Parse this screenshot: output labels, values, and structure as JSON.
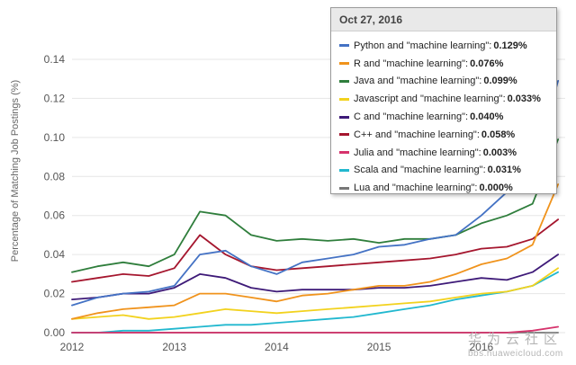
{
  "chart_data": {
    "type": "line",
    "title": "",
    "ylabel": "Percentage of Matching Job Postings (%)",
    "xlabel": "",
    "x_tick_labels": [
      "2012",
      "2013",
      "2014",
      "2015",
      "2016"
    ],
    "y_ticks": [
      "0.00",
      "0.02",
      "0.04",
      "0.06",
      "0.08",
      "0.10",
      "0.12",
      "0.14"
    ],
    "ylim": [
      0,
      0.14
    ],
    "xlim": [
      "2012-01",
      "2016-10"
    ],
    "grid": true,
    "x": [
      "2012-01",
      "2012-04",
      "2012-07",
      "2012-10",
      "2013-01",
      "2013-04",
      "2013-07",
      "2013-10",
      "2014-01",
      "2014-04",
      "2014-07",
      "2014-10",
      "2015-01",
      "2015-04",
      "2015-07",
      "2015-10",
      "2016-01",
      "2016-04",
      "2016-07",
      "2016-10"
    ],
    "series": [
      {
        "name": "Python",
        "color": "#4472c4",
        "values": [
          0.014,
          0.018,
          0.02,
          0.021,
          0.024,
          0.04,
          0.042,
          0.034,
          0.03,
          0.036,
          0.038,
          0.04,
          0.044,
          0.045,
          0.048,
          0.05,
          0.06,
          0.072,
          0.082,
          0.129
        ]
      },
      {
        "name": "R",
        "color": "#f0931c",
        "values": [
          0.007,
          0.01,
          0.012,
          0.013,
          0.014,
          0.02,
          0.02,
          0.018,
          0.016,
          0.019,
          0.02,
          0.022,
          0.024,
          0.024,
          0.026,
          0.03,
          0.035,
          0.038,
          0.045,
          0.076
        ]
      },
      {
        "name": "Java",
        "color": "#2f7e3c",
        "values": [
          0.031,
          0.034,
          0.036,
          0.034,
          0.04,
          0.062,
          0.06,
          0.05,
          0.047,
          0.048,
          0.047,
          0.048,
          0.046,
          0.048,
          0.048,
          0.05,
          0.056,
          0.06,
          0.066,
          0.099
        ]
      },
      {
        "name": "Javascript",
        "color": "#f2d21e",
        "values": [
          0.007,
          0.008,
          0.009,
          0.007,
          0.008,
          0.01,
          0.012,
          0.011,
          0.01,
          0.011,
          0.012,
          0.013,
          0.014,
          0.015,
          0.016,
          0.018,
          0.02,
          0.021,
          0.024,
          0.033
        ]
      },
      {
        "name": "C",
        "color": "#3e1a78",
        "values": [
          0.017,
          0.018,
          0.02,
          0.02,
          0.023,
          0.03,
          0.028,
          0.023,
          0.021,
          0.022,
          0.022,
          0.022,
          0.023,
          0.023,
          0.024,
          0.026,
          0.028,
          0.027,
          0.031,
          0.04
        ]
      },
      {
        "name": "C++",
        "color": "#a5162e",
        "values": [
          0.026,
          0.028,
          0.03,
          0.029,
          0.033,
          0.05,
          0.04,
          0.034,
          0.032,
          0.033,
          0.034,
          0.035,
          0.036,
          0.037,
          0.038,
          0.04,
          0.043,
          0.044,
          0.048,
          0.058
        ]
      },
      {
        "name": "Julia",
        "color": "#d6336c",
        "values": [
          0.0,
          0.0,
          0.0,
          0.0,
          0.0,
          0.0,
          0.0,
          0.0,
          0.0,
          0.0,
          0.0,
          0.0,
          0.0,
          0.0,
          0.0,
          0.0,
          0.0,
          0.0,
          0.001,
          0.003
        ]
      },
      {
        "name": "Scala",
        "color": "#22b8cf",
        "values": [
          0.0,
          0.0,
          0.001,
          0.001,
          0.002,
          0.003,
          0.004,
          0.004,
          0.005,
          0.006,
          0.007,
          0.008,
          0.01,
          0.012,
          0.014,
          0.017,
          0.019,
          0.021,
          0.024,
          0.031
        ]
      },
      {
        "name": "Lua",
        "color": "#777777",
        "values": [
          0.0,
          0.0,
          0.0,
          0.0,
          0.0,
          0.0,
          0.0,
          0.0,
          0.0,
          0.0,
          0.0,
          0.0,
          0.0,
          0.0,
          0.0,
          0.0,
          0.0,
          0.0,
          0.0,
          0.0
        ]
      }
    ]
  },
  "tooltip": {
    "date": "Oct 27, 2016",
    "rows": [
      {
        "label": "Python and \"machine learning\":",
        "value": "0.129%",
        "color": "#4472c4"
      },
      {
        "label": "R and \"machine learning\":",
        "value": "0.076%",
        "color": "#f0931c"
      },
      {
        "label": "Java and \"machine learning\":",
        "value": "0.099%",
        "color": "#2f7e3c"
      },
      {
        "label": "Javascript and \"machine learning\":",
        "value": "0.033%",
        "color": "#f2d21e"
      },
      {
        "label": "C and \"machine learning\":",
        "value": "0.040%",
        "color": "#3e1a78"
      },
      {
        "label": "C++ and \"machine learning\":",
        "value": "0.058%",
        "color": "#a5162e"
      },
      {
        "label": "Julia and \"machine learning\":",
        "value": "0.003%",
        "color": "#d6336c"
      },
      {
        "label": "Scala and \"machine learning\":",
        "value": "0.031%",
        "color": "#22b8cf"
      },
      {
        "label": "Lua and \"machine learning\":",
        "value": "0.000%",
        "color": "#777777"
      }
    ]
  },
  "watermark": {
    "title": "华为云社区",
    "subtitle": "bbs.huaweicloud.com"
  }
}
